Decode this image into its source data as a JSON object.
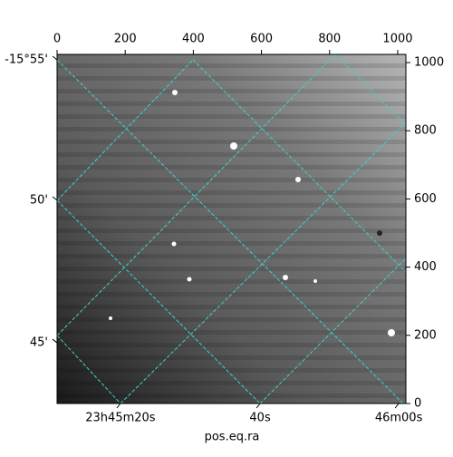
{
  "chart_data": {
    "type": "image",
    "xlabel": "pos.eq.ra",
    "xlim": [
      0,
      1024
    ],
    "xticks": [
      0,
      200,
      400,
      600,
      800,
      1000
    ],
    "ylim": [
      0,
      1024
    ],
    "yticks": [
      0,
      200,
      400,
      600,
      800,
      1000
    ],
    "ra_ticks": [
      {
        "value": 186,
        "label": "23h45m20s"
      },
      {
        "value": 596,
        "label": "40s"
      },
      {
        "value": 1003,
        "label": "46m00s"
      }
    ],
    "dec_ticks": [
      {
        "value": 1008,
        "label": "-15°55'"
      },
      {
        "value": 596,
        "label": "50'"
      },
      {
        "value": 178,
        "label": "45'"
      }
    ]
  }
}
